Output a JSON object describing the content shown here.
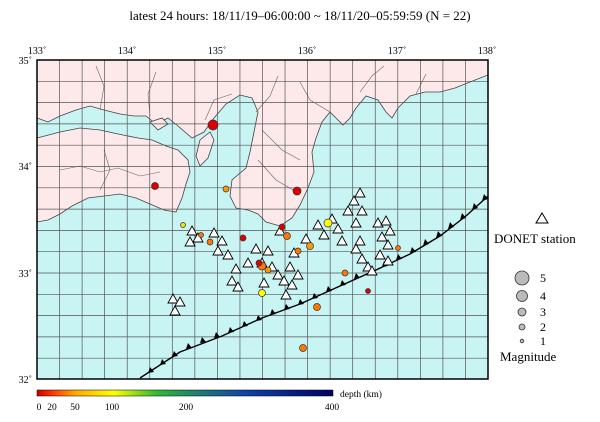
{
  "title": "latest 24 hours: 18/11/19–06:00:00 ~ 18/11/20–05:59:59 (N = 22)",
  "map": {
    "lon_ticks": [
      "133˚",
      "134˚",
      "135˚",
      "136˚",
      "137˚",
      "138˚"
    ],
    "lat_ticks": [
      "35˚",
      "34˚",
      "33˚",
      "32˚"
    ],
    "land_color": "#fde9e9",
    "sea_color": "#c8f4f4",
    "grid_color": "#555555"
  },
  "legend": {
    "station_label": "DONET station",
    "magnitude_title": "Magnitude",
    "magnitudes": [
      "5",
      "4",
      "3",
      "2",
      "1"
    ]
  },
  "colorbar": {
    "title": "depth (km)",
    "ticks": [
      "0",
      "20",
      "50",
      "100",
      "200",
      "400"
    ],
    "colors": {
      "shallow": "#dd0000",
      "mid": "#ff8800",
      "deep": "#ffff00",
      "green": "#22aa22",
      "blue": "#1133aa",
      "navy": "#000066"
    }
  }
}
